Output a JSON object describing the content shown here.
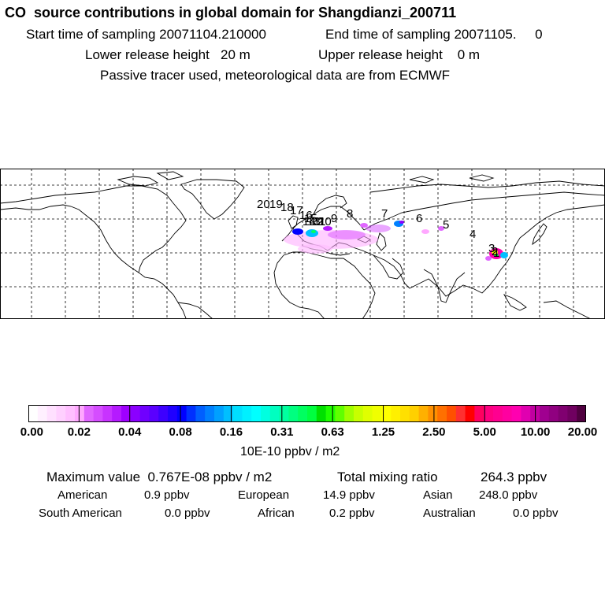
{
  "header": {
    "title": "CO  source contributions in global domain for Shangdianzi_200711",
    "start_label": "Start time of sampling 20071104.210000",
    "end_label": "End time of sampling 20071105.     0",
    "lower_label": "Lower release height   20 m",
    "upper_label": "Upper release height    0 m",
    "tracer_label": "Passive tracer used, meteorological data are from ECMWF"
  },
  "map": {
    "trajectory_labels": [
      "20",
      "19",
      "18",
      "17",
      "16",
      "15",
      "14",
      "13",
      "12",
      "11",
      "10",
      "9",
      "8",
      "7",
      "6",
      "5",
      "4",
      "3",
      "2",
      "1"
    ]
  },
  "colorbar": {
    "ticks": [
      "0.00",
      "0.02",
      "0.04",
      "0.08",
      "0.16",
      "0.31",
      "0.63",
      "1.25",
      "2.50",
      "5.00",
      "10.00",
      "20.00"
    ],
    "colors": [
      "#ffffff",
      "#fff0ff",
      "#ffe0ff",
      "#ffd0ff",
      "#ffbfff",
      "#ffa8ff",
      "#e066ff",
      "#d54dff",
      "#c833ff",
      "#b51aff",
      "#9f00ff",
      "#8b00ff",
      "#7000ff",
      "#5a00ff",
      "#3d00ff",
      "#2000ff",
      "#0000ff",
      "#0030ff",
      "#005fff",
      "#0080ff",
      "#00a0ff",
      "#00bfff",
      "#00dfff",
      "#00f0ff",
      "#00ffff",
      "#00ffe0",
      "#00ffc0",
      "#00ffa0",
      "#00ff80",
      "#00ff60",
      "#00ff40",
      "#00e000",
      "#20ff00",
      "#60ff00",
      "#a0ff00",
      "#c8ff00",
      "#e0ff00",
      "#f0ff00",
      "#ffff00",
      "#fff000",
      "#ffe000",
      "#ffd000",
      "#ffb000",
      "#ff9000",
      "#ff7000",
      "#ff5000",
      "#ff3030",
      "#ff0000",
      "#ff0060",
      "#ff0080",
      "#ff0090",
      "#ff00a0",
      "#ff00b0",
      "#e000b0",
      "#c000a0",
      "#a00090",
      "#900080",
      "#800070",
      "#700060",
      "#500040"
    ],
    "units": "10E-10 ppbv / m2"
  },
  "summary": {
    "max_label": "Maximum value  0.767E-08 ppbv / m2",
    "total_label": "Total mixing ratio",
    "total_value": "264.3 ppbv",
    "regions": [
      {
        "name": "American",
        "value": "0.9 ppbv"
      },
      {
        "name": "European",
        "value": "14.9 ppbv"
      },
      {
        "name": "Asian",
        "value": "248.0 ppbv"
      },
      {
        "name": "South American",
        "value": "0.0 ppbv"
      },
      {
        "name": "African",
        "value": "0.2 ppbv"
      },
      {
        "name": "Australian",
        "value": "0.0 ppbv"
      }
    ]
  },
  "colors": {
    "accent_magenta": "#ff00ff",
    "map_line": "#000000"
  }
}
